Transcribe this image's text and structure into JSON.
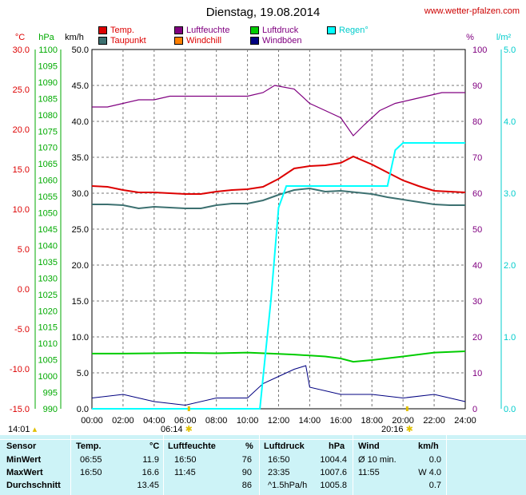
{
  "title": "Dienstag, 19.08.2014",
  "site": "www.wetter-pfalzen.com",
  "legend": [
    {
      "label": "Temp.",
      "color": "#dd0000"
    },
    {
      "label": "Taupunkt",
      "color": "#3c7070"
    },
    {
      "label": "Luftfeuchte",
      "color": "#800080"
    },
    {
      "label": "Windchill",
      "color": "#ff8000"
    },
    {
      "label": "Luftdruck",
      "color": "#00cc00"
    },
    {
      "label": "Windböen",
      "color": "#000080"
    },
    {
      "label": "Regen°",
      "color": "#00ffff"
    }
  ],
  "axes": {
    "temp": {
      "title": "°C",
      "color": "#dd0000",
      "ticks": [
        "30.0",
        "25.0",
        "20.0",
        "15.0",
        "10.0",
        "5.0",
        "0.0",
        "-5.0",
        "-10.0",
        "-15.0"
      ]
    },
    "pressure": {
      "title": "hPa",
      "color": "#00aa00",
      "ticks": [
        "1100",
        "1095",
        "1090",
        "1085",
        "1080",
        "1075",
        "1070",
        "1065",
        "1060",
        "1055",
        "1050",
        "1045",
        "1040",
        "1035",
        "1030",
        "1025",
        "1020",
        "1015",
        "1010",
        "1005",
        "1000",
        "995",
        "990"
      ]
    },
    "wind": {
      "title": "km/h",
      "color": "#000000",
      "ticks": [
        "50.0",
        "45.0",
        "40.0",
        "35.0",
        "30.0",
        "25.0",
        "20.0",
        "15.0",
        "10.0",
        "5.0",
        "0.0"
      ]
    },
    "humidity": {
      "title": "%",
      "color": "#800080",
      "ticks": [
        "100",
        "90",
        "80",
        "70",
        "60",
        "50",
        "40",
        "30",
        "20",
        "10",
        "0"
      ]
    },
    "rain": {
      "title": "l/m²",
      "color": "#00cccc",
      "ticks": [
        "5.0",
        "4.0",
        "3.0",
        "2.0",
        "1.0",
        "0.0"
      ]
    },
    "x_ticks": [
      "00:00",
      "02:00",
      "04:00",
      "06:00",
      "08:00",
      "10:00",
      "12:00",
      "14:00",
      "16:00",
      "18:00",
      "20:00",
      "22:00",
      "24:00"
    ]
  },
  "sun_markers": {
    "moonset": "14:01",
    "sunrise": "06:14",
    "sunset": "20:16"
  },
  "chart_data": {
    "type": "line",
    "title": "Dienstag, 19.08.2014",
    "x_range": [
      "00:00",
      "24:00"
    ],
    "series": [
      {
        "name": "Temp.",
        "axis": "°C",
        "x": [
          0,
          1,
          2,
          3,
          4,
          5,
          6,
          7,
          8,
          9,
          10,
          11,
          12,
          13,
          14,
          15,
          16,
          16.8,
          18,
          19,
          20,
          21,
          22,
          23,
          24
        ],
        "values": [
          12.9,
          12.8,
          12.4,
          12.1,
          12.1,
          12.0,
          11.9,
          11.9,
          12.2,
          12.4,
          12.5,
          12.8,
          13.8,
          15.1,
          15.4,
          15.5,
          15.8,
          16.6,
          15.6,
          14.6,
          13.6,
          12.9,
          12.3,
          12.2,
          12.1
        ]
      },
      {
        "name": "Taupunkt",
        "axis": "°C",
        "x": [
          0,
          1,
          2,
          3,
          4,
          5,
          6,
          7,
          8,
          9,
          10,
          11,
          12,
          13,
          14,
          15,
          16,
          17,
          18,
          19,
          20,
          21,
          22,
          23,
          24
        ],
        "values": [
          10.6,
          10.6,
          10.5,
          10.1,
          10.3,
          10.2,
          10.1,
          10.1,
          10.5,
          10.7,
          10.7,
          11.1,
          11.8,
          12.4,
          12.6,
          12.2,
          12.3,
          12.1,
          11.9,
          11.5,
          11.2,
          10.9,
          10.6,
          10.5,
          10.5
        ]
      },
      {
        "name": "Luftfeuchte",
        "axis": "%",
        "x": [
          0,
          1,
          2,
          3,
          4,
          5,
          6,
          7,
          8,
          9,
          10,
          11,
          11.75,
          13,
          14,
          15,
          16,
          16.8,
          17.5,
          18.5,
          19.5,
          20.5,
          21.5,
          22.5,
          24
        ],
        "values": [
          84,
          84,
          85,
          86,
          86,
          87,
          87,
          87,
          87,
          87,
          87,
          88,
          90,
          89,
          85,
          83,
          81,
          76,
          79,
          83,
          85,
          86,
          87,
          88,
          88
        ]
      },
      {
        "name": "Luftdruck",
        "axis": "hPa",
        "x": [
          0,
          2,
          4,
          6,
          8,
          10,
          12,
          13,
          14,
          15,
          16,
          16.8,
          18,
          20,
          22,
          24
        ],
        "values": [
          1006.9,
          1006.9,
          1007.0,
          1007.1,
          1007.0,
          1007.2,
          1006.8,
          1006.6,
          1006.3,
          1006.0,
          1005.4,
          1004.4,
          1004.9,
          1006.0,
          1007.2,
          1007.6
        ]
      },
      {
        "name": "Windböen",
        "axis": "km/h",
        "x": [
          0,
          2,
          4,
          6,
          8,
          10,
          11,
          12,
          13,
          13.75,
          14,
          16,
          18,
          20,
          22,
          24
        ],
        "values": [
          1.5,
          2.0,
          1.0,
          0.5,
          1.5,
          1.5,
          3.5,
          4.5,
          5.5,
          6.0,
          3.0,
          2.0,
          2.0,
          1.5,
          2.0,
          1.0
        ]
      },
      {
        "name": "Regen°",
        "axis": "l/m²",
        "x": [
          0,
          10.8,
          11.5,
          12,
          12.5,
          13,
          14,
          16,
          19,
          19.5,
          20,
          22,
          24
        ],
        "values": [
          0,
          0,
          1.5,
          2.8,
          3.1,
          3.1,
          3.1,
          3.1,
          3.1,
          3.6,
          3.7,
          3.7,
          3.7
        ]
      }
    ]
  },
  "table": {
    "headers": {
      "sensor": "Sensor",
      "temp": "Temp.",
      "temp_unit": "°C",
      "hum": "Luftfeuchte",
      "hum_unit": "%",
      "press": "Luftdruck",
      "press_unit": "hPa",
      "wind": "Wind",
      "wind_unit": "km/h"
    },
    "rows": [
      {
        "label": "MinWert",
        "temp_time": "06:55",
        "temp_val": "11.9",
        "hum_time": "16:50",
        "hum_val": "76",
        "press_time": "16:50",
        "press_val": "1004.4",
        "wind_time": "Ø 10 min.",
        "wind_val": "0.0"
      },
      {
        "label": "MaxWert",
        "temp_time": "16:50",
        "temp_val": "16.6",
        "hum_time": "11:45",
        "hum_val": "90",
        "press_time": "23:35",
        "press_val": "1007.6",
        "wind_time": "11:55",
        "wind_val": "W 4.0"
      },
      {
        "label": "Durchschnitt",
        "temp_time": "",
        "temp_val": "13.45",
        "hum_time": "",
        "hum_val": "86",
        "press_time": "^1.5hPa/h",
        "press_val": "1005.8",
        "wind_time": "",
        "wind_val": "0.7"
      }
    ]
  }
}
